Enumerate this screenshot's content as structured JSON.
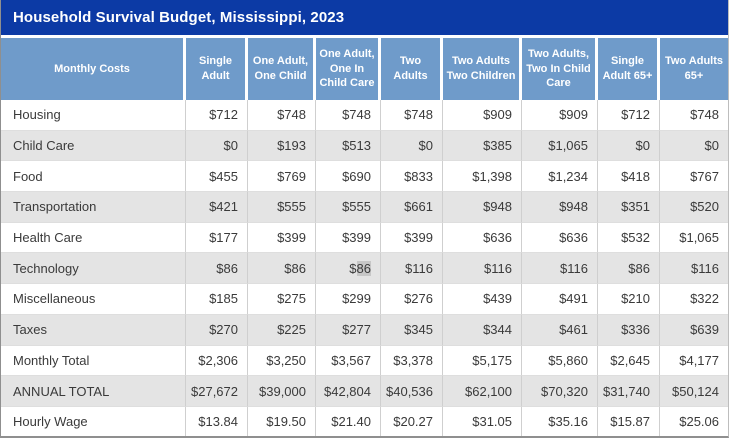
{
  "title": "Household Survival Budget, Mississippi, 2023",
  "colors": {
    "title_bar": "#0c3aa5",
    "header_bg": "#6f9bca",
    "stripe_bg": "#e4e4e4",
    "body_text": "#3a3a3a",
    "selection_highlight": "#c7c7c7"
  },
  "selection": {
    "row_index": 5,
    "value_index": 2,
    "prefix": "$",
    "highlighted_text": "86"
  },
  "chart_data": {
    "type": "table",
    "title": "Household Survival Budget, Mississippi, 2023",
    "columns": [
      "Monthly Costs",
      "Single Adult",
      "One Adult, One Child",
      "One Adult, One In Child Care",
      "Two Adults",
      "Two Adults Two Children",
      "Two Adults, Two In Child Care",
      "Single Adult 65+",
      "Two Adults 65+"
    ],
    "rows": [
      {
        "label": "Housing",
        "values": [
          "$712",
          "$748",
          "$748",
          "$748",
          "$909",
          "$909",
          "$712",
          "$748"
        ]
      },
      {
        "label": "Child Care",
        "values": [
          "$0",
          "$193",
          "$513",
          "$0",
          "$385",
          "$1,065",
          "$0",
          "$0"
        ]
      },
      {
        "label": "Food",
        "values": [
          "$455",
          "$769",
          "$690",
          "$833",
          "$1,398",
          "$1,234",
          "$418",
          "$767"
        ]
      },
      {
        "label": "Transportation",
        "values": [
          "$421",
          "$555",
          "$555",
          "$661",
          "$948",
          "$948",
          "$351",
          "$520"
        ]
      },
      {
        "label": "Health Care",
        "values": [
          "$177",
          "$399",
          "$399",
          "$399",
          "$636",
          "$636",
          "$532",
          "$1,065"
        ]
      },
      {
        "label": "Technology",
        "values": [
          "$86",
          "$86",
          "$86",
          "$116",
          "$116",
          "$116",
          "$86",
          "$116"
        ]
      },
      {
        "label": "Miscellaneous",
        "values": [
          "$185",
          "$275",
          "$299",
          "$276",
          "$439",
          "$491",
          "$210",
          "$322"
        ]
      },
      {
        "label": "Taxes",
        "values": [
          "$270",
          "$225",
          "$277",
          "$345",
          "$344",
          "$461",
          "$336",
          "$639"
        ]
      },
      {
        "label": "Monthly Total",
        "values": [
          "$2,306",
          "$3,250",
          "$3,567",
          "$3,378",
          "$5,175",
          "$5,860",
          "$2,645",
          "$4,177"
        ]
      },
      {
        "label": "ANNUAL TOTAL",
        "values": [
          "$27,672",
          "$39,000",
          "$42,804",
          "$40,536",
          "$62,100",
          "$70,320",
          "$31,740",
          "$50,124"
        ]
      },
      {
        "label": "Hourly Wage",
        "values": [
          "$13.84",
          "$19.50",
          "$21.40",
          "$20.27",
          "$31.05",
          "$35.16",
          "$15.87",
          "$25.06"
        ]
      }
    ]
  }
}
